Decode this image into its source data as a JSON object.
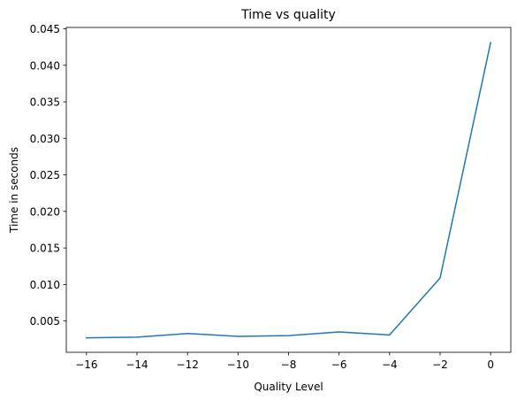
{
  "chart_data": {
    "type": "line",
    "title": "Time vs quality",
    "xlabel": "Quality Level",
    "ylabel": "Time in seconds",
    "xlim": [
      -16.8,
      0.8
    ],
    "ylim": [
      0.00072,
      0.04518
    ],
    "grid": false,
    "x_ticks": [
      -16,
      -14,
      -12,
      -10,
      -8,
      -6,
      -4,
      -2,
      0
    ],
    "x_tick_labels": [
      "−16",
      "−14",
      "−12",
      "−10",
      "−8",
      "−6",
      "−4",
      "−2",
      "0"
    ],
    "y_ticks": [
      0.005,
      0.01,
      0.015,
      0.02,
      0.025,
      0.03,
      0.035,
      0.04,
      0.045
    ],
    "y_tick_labels": [
      "0.005",
      "0.010",
      "0.015",
      "0.020",
      "0.025",
      "0.030",
      "0.035",
      "0.040",
      "0.045"
    ],
    "series": [
      {
        "color": "#1f77b4",
        "x": [
          -16,
          -14,
          -12,
          -10,
          -8,
          -6,
          -4,
          -2,
          0
        ],
        "y": [
          0.0027,
          0.0028,
          0.0033,
          0.0029,
          0.003,
          0.0035,
          0.0031,
          0.0109,
          0.0431
        ]
      }
    ]
  }
}
